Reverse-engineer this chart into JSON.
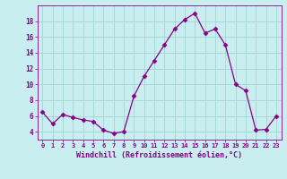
{
  "x": [
    0,
    1,
    2,
    3,
    4,
    5,
    6,
    7,
    8,
    9,
    10,
    11,
    12,
    13,
    14,
    15,
    16,
    17,
    18,
    19,
    20,
    21,
    22,
    23
  ],
  "y": [
    6.5,
    5.0,
    6.2,
    5.8,
    5.5,
    5.3,
    4.2,
    3.8,
    4.0,
    8.5,
    11.0,
    13.0,
    15.0,
    17.0,
    18.2,
    19.0,
    16.5,
    17.0,
    15.0,
    10.0,
    9.2,
    4.2,
    4.3,
    6.0
  ],
  "line_color": "#880088",
  "marker": "D",
  "marker_size": 2.5,
  "bg_color": "#c8eef0",
  "grid_color": "#a8d8da",
  "xlabel": "Windchill (Refroidissement éolien,°C)",
  "xlim": [
    -0.5,
    23.5
  ],
  "ylim": [
    3,
    20
  ],
  "yticks": [
    4,
    6,
    8,
    10,
    12,
    14,
    16,
    18
  ],
  "xticks": [
    0,
    1,
    2,
    3,
    4,
    5,
    6,
    7,
    8,
    9,
    10,
    11,
    12,
    13,
    14,
    15,
    16,
    17,
    18,
    19,
    20,
    21,
    22,
    23
  ],
  "tick_color": "#880088",
  "label_color": "#880088"
}
